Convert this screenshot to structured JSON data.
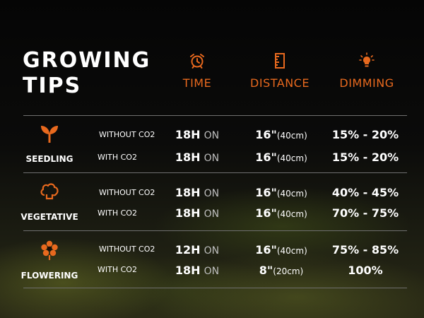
{
  "title": {
    "line1": "GROWING",
    "line2": "TIPS"
  },
  "columns": {
    "time": "TIME",
    "distance": "DISTANCE",
    "dimming": "DIMMING"
  },
  "icons": {
    "time": "alarm-clock-icon",
    "distance": "ruler-icon",
    "dimming": "light-bulb-icon"
  },
  "colors": {
    "accent": "#e8691e",
    "text": "#ffffff",
    "muted": "#bdbdbd",
    "divider": "#6f6f6f"
  },
  "stages": [
    {
      "name": "SEEDLING",
      "icon": "sprout-icon",
      "rows": [
        {
          "condition": "WITHOUT CO2",
          "time": "18H",
          "time_unit": "ON",
          "distance": "16\"",
          "distance_metric": "(40cm)",
          "dimming": "15% - 20%"
        },
        {
          "condition": "WITH CO2",
          "time": "18H",
          "time_unit": "ON",
          "distance": "16\"",
          "distance_metric": "(40cm)",
          "dimming": "15% - 20%"
        }
      ]
    },
    {
      "name": "VEGETATIVE",
      "icon": "cauliflower-icon",
      "rows": [
        {
          "condition": "WITHOUT CO2",
          "time": "18H",
          "time_unit": "ON",
          "distance": "16\"",
          "distance_metric": "(40cm)",
          "dimming": "40% - 45%"
        },
        {
          "condition": "WITH CO2",
          "time": "18H",
          "time_unit": "ON",
          "distance": "16\"",
          "distance_metric": "(40cm)",
          "dimming": "70% - 75%"
        }
      ]
    },
    {
      "name": "FLOWERING",
      "icon": "flower-icon",
      "rows": [
        {
          "condition": "WITHOUT CO2",
          "time": "12H",
          "time_unit": "ON",
          "distance": "16\"",
          "distance_metric": "(40cm)",
          "dimming": "75% - 85%"
        },
        {
          "condition": "WITH CO2",
          "time": "18H",
          "time_unit": "ON",
          "distance": "8\"",
          "distance_metric": "(20cm)",
          "dimming": "100%"
        }
      ]
    }
  ]
}
